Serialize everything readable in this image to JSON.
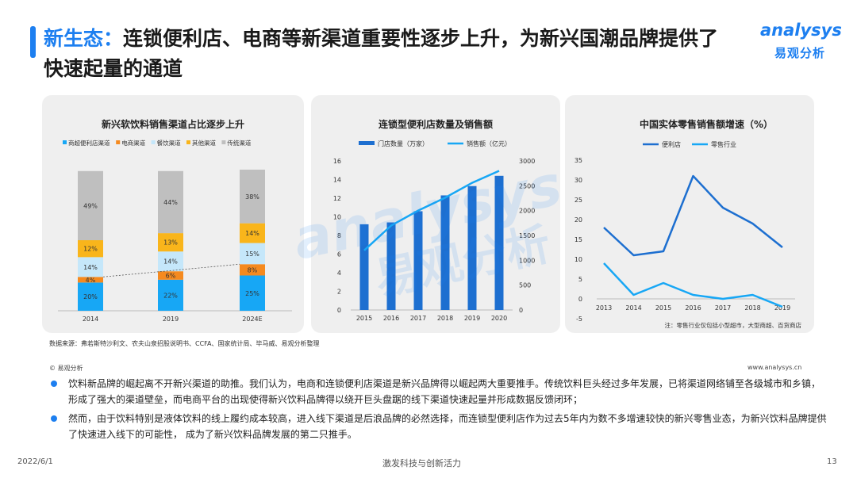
{
  "title": {
    "prefix": "新生态：",
    "text": "连锁便利店、电商等新渠道重要性逐步上升，为新兴国潮品牌提供了快速起量的通道"
  },
  "logo": {
    "word": "analysys",
    "cn": "易观分析"
  },
  "watermark": {
    "word": "analysys",
    "cn": "易观分析"
  },
  "chart_data": [
    {
      "type": "bar",
      "stacked": true,
      "title": "新兴软饮料销售渠道占比逐步上升",
      "categories": [
        "2014",
        "2019",
        "2024E"
      ],
      "legend_position": "top",
      "colors": [
        "#17a7f5",
        "#f58a1f",
        "#c5e7fa",
        "#f9b51b",
        "#bfbfbf"
      ],
      "series": [
        {
          "name": "商超便利店渠道",
          "values": [
            20,
            22,
            25
          ],
          "labels": [
            "20%",
            "22%",
            "25%"
          ]
        },
        {
          "name": "电商渠道",
          "values": [
            4,
            6,
            8
          ],
          "labels": [
            "4%",
            "6%",
            "8%"
          ]
        },
        {
          "name": "餐饮渠道",
          "values": [
            14,
            14,
            15
          ],
          "labels": [
            "14%",
            "14%",
            "15%"
          ]
        },
        {
          "name": "其他渠道",
          "values": [
            12,
            13,
            14
          ],
          "labels": [
            "12%",
            "13%",
            "14%"
          ]
        },
        {
          "name": "传统渠道",
          "values": [
            49,
            44,
            38
          ],
          "labels": [
            "49%",
            "44%",
            "38%"
          ]
        }
      ],
      "ylim": [
        0,
        100
      ]
    },
    {
      "type": "bar",
      "title": "连锁型便利店数量及销售额",
      "categories": [
        "2015",
        "2016",
        "2017",
        "2018",
        "2019",
        "2020"
      ],
      "series": [
        {
          "name": "门店数量（万家）",
          "type": "bar",
          "axis": "left",
          "color": "#1d6fd0",
          "values": [
            9.2,
            9.4,
            10.6,
            12.3,
            13.3,
            14.4
          ]
        },
        {
          "name": "销售额（亿元）",
          "type": "line",
          "axis": "right",
          "color": "#17a7f5",
          "values": [
            1200,
            1700,
            2000,
            2260,
            2560,
            2800
          ]
        }
      ],
      "yticks_left": [
        "0",
        "2",
        "4",
        "6",
        "8",
        "10",
        "12",
        "14",
        "16"
      ],
      "yticks_right": [
        "0",
        "500",
        "1000",
        "1500",
        "2000",
        "2500",
        "3000"
      ],
      "ylim_left": [
        0,
        16
      ],
      "ylim_right": [
        0,
        3000
      ],
      "legend_position": "top"
    },
    {
      "type": "line",
      "title": "中国实体零售销售额增速（%）",
      "x": [
        "2013",
        "2014",
        "2015",
        "2016",
        "2017",
        "2018",
        "2019"
      ],
      "series": [
        {
          "name": "便利店",
          "color": "#1d6fd0",
          "values": [
            18,
            11,
            12,
            31,
            23,
            19,
            13
          ]
        },
        {
          "name": "零售行业",
          "color": "#17a7f5",
          "values": [
            9,
            1,
            4,
            1,
            0,
            1,
            -2
          ]
        }
      ],
      "yticks": [
        "-5",
        "0",
        "5",
        "10",
        "15",
        "20",
        "25",
        "30",
        "35"
      ],
      "ylim": [
        -5,
        35
      ],
      "legend_position": "top",
      "note": "注：零售行业仅包括小型超市，大型商超、百货商店"
    }
  ],
  "source": "数据来源：弗若斯特沙利文、农夫山泉招股说明书、CCFA、国家统计局、毕马威、易观分析整理",
  "copyright": "© 易观分析",
  "site": "www.analysys.cn",
  "bullets": [
    "饮料新品牌的崛起离不开新兴渠道的助推。我们认为，电商和连锁便利店渠道是新兴品牌得以崛起两大重要推手。传统饮料巨头经过多年发展，已将渠道网络铺至各级城市和乡镇，形成了强大的渠道壁垒，而电商平台的出现使得新兴饮料品牌得以绕开巨头盘踞的线下渠道快速起量并形成数据反馈闭环；",
    "然而，由于饮料特别是液体饮料的线上履约成本较高，进入线下渠道是后浪品牌的必然选择，而连锁型便利店作为过去5年内为数不多增速较快的新兴零售业态，为新兴饮料品牌提供了快速进入线下的可能性， 成为了新兴饮料品牌发展的第二只推手。"
  ],
  "footer": {
    "date": "2022/6/1",
    "slogan": "激发科技与创新活力",
    "page": "13"
  }
}
